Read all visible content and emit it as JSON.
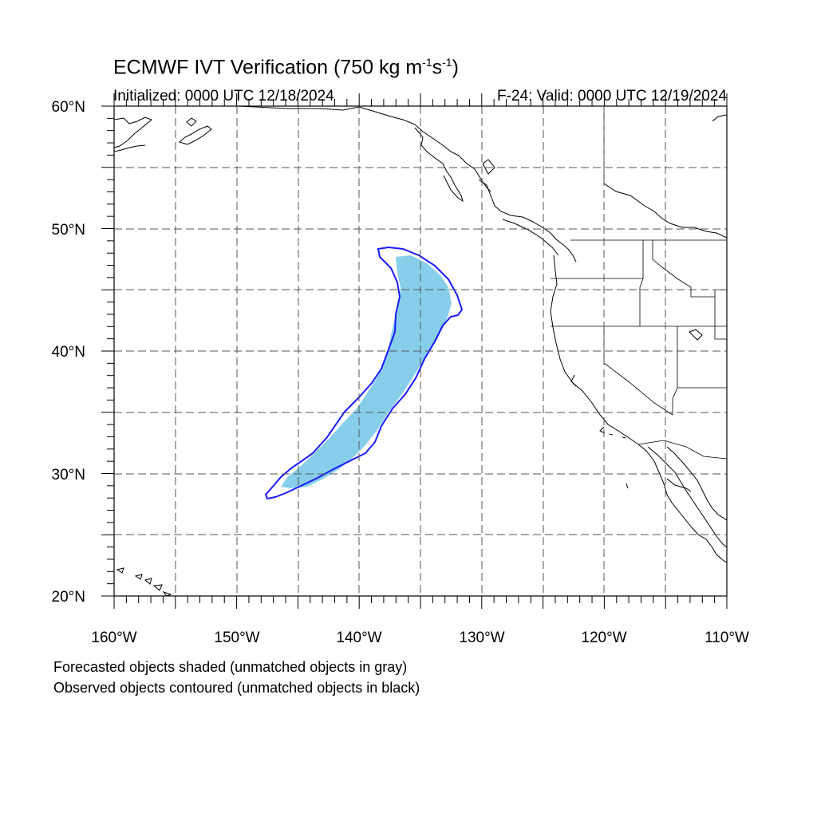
{
  "title": {
    "main": "ECMWF IVT Verification (750 kg m",
    "sup1": "-1",
    "mid": "s",
    "sup2": "-1",
    "end": ")"
  },
  "subtitle_left": "Initialized: 0000 UTC 12/18/2024",
  "subtitle_right": "F-24: Valid: 0000 UTC 12/19/2024",
  "lat_labels": [
    "60°N",
    "50°N",
    "40°N",
    "30°N",
    "20°N"
  ],
  "lon_labels": [
    "160°W",
    "150°W",
    "140°W",
    "130°W",
    "120°W",
    "110°W"
  ],
  "footnotes": [
    "Forecasted objects shaded (unmatched objects in gray)",
    "Observed objects contoured (unmatched objects in black)"
  ],
  "colors": {
    "forecast_fill": "#87ceeb",
    "observed_contour": "#1a1aff",
    "coastline": "#000000",
    "grid": "#555555"
  },
  "map_extent": {
    "lon": [
      -160,
      -110
    ],
    "lat": [
      20,
      60
    ]
  }
}
